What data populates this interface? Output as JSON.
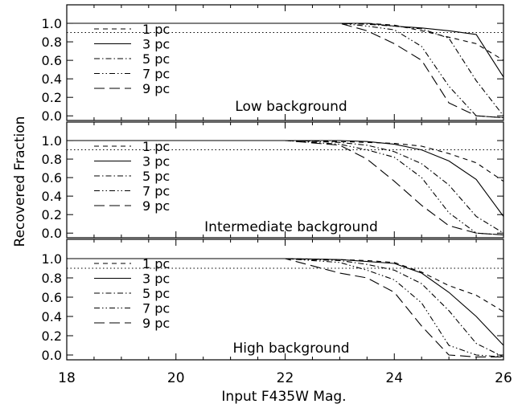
{
  "chart_data": {
    "type": "line",
    "xlabel": "Input F435W Mag.",
    "ylabel": "Recovered Fraction",
    "xlim": [
      18,
      26
    ],
    "ylim": [
      -0.05,
      1.2
    ],
    "x_ticks": [
      "18",
      "20",
      "22",
      "24",
      "26"
    ],
    "y_ticks": [
      "0.0",
      "0.2",
      "0.4",
      "0.6",
      "0.8",
      "1.0"
    ],
    "reference_line": 0.9,
    "legend_position": "lower-left",
    "panels": [
      {
        "label": "Low background",
        "series": [
          {
            "name": "1 pc",
            "style": "short-dash",
            "x": [
              18,
              22,
              23,
              23.5,
              24,
              24.5,
              25,
              25.5,
              26
            ],
            "y": [
              1.0,
              1.0,
              1.0,
              1.0,
              0.98,
              0.92,
              0.85,
              0.78,
              0.6
            ]
          },
          {
            "name": "3 pc",
            "style": "solid",
            "x": [
              18,
              22,
              23,
              23.5,
              24,
              24.5,
              25,
              25.5,
              26
            ],
            "y": [
              1.0,
              1.0,
              1.0,
              1.0,
              0.97,
              0.95,
              0.92,
              0.88,
              0.42
            ]
          },
          {
            "name": "5 pc",
            "style": "dash-dot",
            "x": [
              18,
              22,
              23,
              23.5,
              24,
              24.5,
              25,
              25.5,
              26
            ],
            "y": [
              1.0,
              1.0,
              1.0,
              0.99,
              0.97,
              0.94,
              0.84,
              0.38,
              0.0
            ]
          },
          {
            "name": "7 pc",
            "style": "dash-dot-dot",
            "x": [
              18,
              22,
              23,
              23.5,
              24,
              24.5,
              25,
              25.5,
              26
            ],
            "y": [
              1.0,
              1.0,
              1.0,
              0.97,
              0.93,
              0.75,
              0.32,
              0.0,
              -0.02
            ]
          },
          {
            "name": "9 pc",
            "style": "long-dash",
            "x": [
              18,
              22,
              23,
              23.5,
              24,
              24.5,
              25,
              25.5,
              26
            ],
            "y": [
              1.0,
              1.0,
              1.0,
              0.92,
              0.78,
              0.6,
              0.14,
              0.0,
              -0.02
            ]
          }
        ]
      },
      {
        "label": "Intermediate background",
        "series": [
          {
            "name": "1 pc",
            "style": "short-dash",
            "x": [
              18,
              22,
              23,
              23.5,
              24,
              24.5,
              25,
              25.5,
              26
            ],
            "y": [
              1.0,
              1.0,
              0.99,
              0.98,
              0.97,
              0.94,
              0.86,
              0.76,
              0.56
            ]
          },
          {
            "name": "3 pc",
            "style": "solid",
            "x": [
              18,
              22,
              23,
              23.5,
              24,
              24.5,
              25,
              25.5,
              26
            ],
            "y": [
              1.0,
              1.0,
              1.0,
              0.99,
              0.96,
              0.9,
              0.78,
              0.58,
              0.18
            ]
          },
          {
            "name": "5 pc",
            "style": "dash-dot",
            "x": [
              18,
              22,
              23,
              23.5,
              24,
              24.5,
              25,
              25.5,
              26
            ],
            "y": [
              1.0,
              1.0,
              0.98,
              0.95,
              0.88,
              0.75,
              0.52,
              0.18,
              0.0
            ]
          },
          {
            "name": "7 pc",
            "style": "dash-dot-dot",
            "x": [
              18,
              22,
              23,
              23.5,
              24,
              24.5,
              25,
              25.5,
              26
            ],
            "y": [
              1.0,
              1.0,
              0.96,
              0.9,
              0.82,
              0.6,
              0.22,
              0.0,
              -0.02
            ]
          },
          {
            "name": "9 pc",
            "style": "long-dash",
            "x": [
              18,
              22,
              23,
              23.5,
              24,
              24.5,
              25,
              25.5,
              26
            ],
            "y": [
              1.0,
              1.0,
              0.95,
              0.8,
              0.56,
              0.3,
              0.08,
              0.0,
              -0.02
            ]
          }
        ]
      },
      {
        "label": "High background",
        "series": [
          {
            "name": "1 pc",
            "style": "short-dash",
            "x": [
              18,
              22,
              23,
              23.5,
              24,
              24.5,
              25,
              25.5,
              26
            ],
            "y": [
              1.0,
              1.0,
              0.99,
              0.98,
              0.96,
              0.86,
              0.72,
              0.62,
              0.45
            ]
          },
          {
            "name": "3 pc",
            "style": "solid",
            "x": [
              18,
              22,
              23,
              23.5,
              24,
              24.5,
              25,
              25.5,
              26
            ],
            "y": [
              1.0,
              1.0,
              0.99,
              0.97,
              0.95,
              0.85,
              0.65,
              0.4,
              0.1
            ]
          },
          {
            "name": "5 pc",
            "style": "dash-dot",
            "x": [
              18,
              22,
              23,
              23.5,
              24,
              24.5,
              25,
              25.5,
              26
            ],
            "y": [
              1.0,
              1.0,
              0.98,
              0.94,
              0.88,
              0.74,
              0.46,
              0.12,
              -0.02
            ]
          },
          {
            "name": "7 pc",
            "style": "dash-dot-dot",
            "x": [
              18,
              22,
              23,
              23.5,
              24,
              24.5,
              25,
              25.5,
              26
            ],
            "y": [
              1.0,
              1.0,
              0.96,
              0.88,
              0.78,
              0.54,
              0.1,
              0.0,
              -0.02
            ]
          },
          {
            "name": "9 pc",
            "style": "long-dash",
            "x": [
              18,
              22,
              23,
              23.5,
              24,
              24.5,
              25,
              25.5,
              26
            ],
            "y": [
              1.0,
              1.0,
              0.85,
              0.8,
              0.65,
              0.3,
              0.0,
              -0.02,
              -0.02
            ]
          }
        ]
      }
    ]
  }
}
